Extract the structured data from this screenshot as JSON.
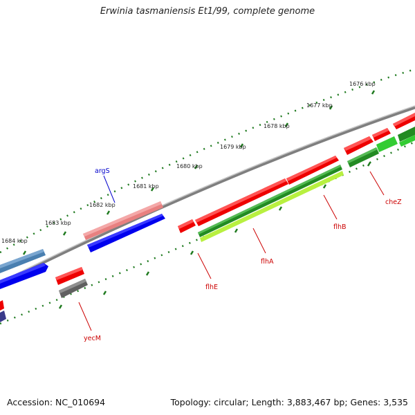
{
  "title": "Erwinia tasmaniensis Et1/99, complete genome",
  "footer": {
    "accession": "Accession: NC_010694",
    "summary": "Topology: circular; Length: 3,883,467 bp; Genes: 3,535"
  },
  "ruler_labels": [
    "1676 kbp",
    "1677 kbp",
    "1678 kbp",
    "1679 kbp",
    "1680 kbp",
    "1681 kbp",
    "1682 kbp",
    "1683 kbp",
    "1684 kbp"
  ],
  "gene_labels": [
    {
      "name": "argS",
      "color": "#0000cc"
    },
    {
      "name": "cheZ",
      "color": "#cc0000"
    },
    {
      "name": "flhB",
      "color": "#cc0000"
    },
    {
      "name": "flhA",
      "color": "#cc0000"
    },
    {
      "name": "flhE",
      "color": "#cc0000"
    },
    {
      "name": "yecM",
      "color": "#cc0000"
    }
  ],
  "colors": {
    "backbone": "#808080",
    "cds_red": "#ee0000",
    "cds_blue": "#0000ee",
    "rna_pink": "#e88080",
    "green_dark": "#228b22",
    "green_light": "#33cc33",
    "yellow_green": "#b8f040",
    "steel": "#4a7fb0",
    "gray": "#606060",
    "ruler": "#1f7a1f"
  }
}
